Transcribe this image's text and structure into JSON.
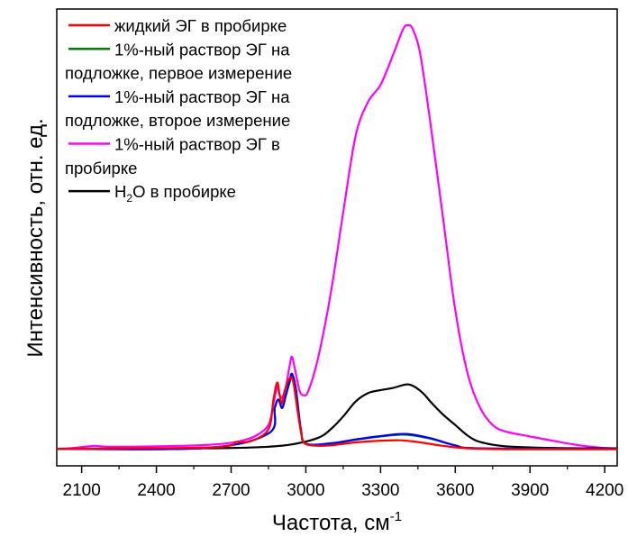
{
  "chart_data": {
    "type": "line",
    "xlabel": "Частота, см",
    "xlabel_sup": "-1",
    "ylabel": "Интенсивность, отн. ед.",
    "xlim": [
      2000,
      4250
    ],
    "ylim": [
      0,
      100
    ],
    "x_ticks": [
      2100,
      2400,
      2700,
      3000,
      3300,
      3600,
      3900,
      4200
    ],
    "x_tick_labels": [
      "2100",
      "2400",
      "2700",
      "3000",
      "3300",
      "3600",
      "3900",
      "4200"
    ],
    "y_ticks_shown": false,
    "legend_position": "top-left",
    "series": [
      {
        "name": "жидкий ЭГ в пробирке",
        "color": "#ff0000",
        "points": [
          [
            2000,
            0.4
          ],
          [
            2300,
            0.5
          ],
          [
            2600,
            0.7
          ],
          [
            2700,
            1.2
          ],
          [
            2720,
            2.0
          ],
          [
            2780,
            2.2
          ],
          [
            2850,
            5
          ],
          [
            2870,
            12
          ],
          [
            2885,
            16
          ],
          [
            2895,
            13
          ],
          [
            2905,
            11
          ],
          [
            2915,
            14
          ],
          [
            2935,
            17
          ],
          [
            2950,
            16
          ],
          [
            2970,
            8
          ],
          [
            2985,
            3
          ],
          [
            3000,
            1.5
          ],
          [
            3050,
            1.1
          ],
          [
            3100,
            1.2
          ],
          [
            3200,
            1.9
          ],
          [
            3300,
            2.3
          ],
          [
            3380,
            2.4
          ],
          [
            3450,
            2.0
          ],
          [
            3550,
            1.1
          ],
          [
            3650,
            0.5
          ],
          [
            3800,
            0.3
          ],
          [
            4000,
            0.3
          ],
          [
            4250,
            0.3
          ]
        ]
      },
      {
        "name": "1%-ный раствор ЭГ на подложке, первое измерение",
        "color": "#008000",
        "points": [
          [
            2000,
            0.4
          ],
          [
            2600,
            0.6
          ],
          [
            2850,
            4
          ],
          [
            2875,
            10
          ],
          [
            2890,
            12
          ],
          [
            2905,
            10
          ],
          [
            2920,
            13
          ],
          [
            2935,
            16
          ],
          [
            2945,
            17.5
          ],
          [
            2960,
            14
          ],
          [
            2980,
            5
          ],
          [
            3000,
            1.6
          ],
          [
            3100,
            1.6
          ],
          [
            3200,
            2.5
          ],
          [
            3300,
            3.3
          ],
          [
            3400,
            3.7
          ],
          [
            3500,
            2.8
          ],
          [
            3600,
            1.2
          ],
          [
            3700,
            0.5
          ],
          [
            4250,
            0.4
          ]
        ]
      },
      {
        "name": "1%-ный раствор ЭГ на подложке, второе измерение",
        "color": "#0000ff",
        "points": [
          [
            2000,
            0.4
          ],
          [
            2600,
            0.6
          ],
          [
            2850,
            4
          ],
          [
            2875,
            10
          ],
          [
            2890,
            12
          ],
          [
            2905,
            10
          ],
          [
            2920,
            13
          ],
          [
            2935,
            16.5
          ],
          [
            2945,
            18
          ],
          [
            2960,
            14.5
          ],
          [
            2980,
            5
          ],
          [
            3000,
            1.6
          ],
          [
            3100,
            1.7
          ],
          [
            3200,
            2.6
          ],
          [
            3300,
            3.4
          ],
          [
            3400,
            3.9
          ],
          [
            3500,
            2.9
          ],
          [
            3600,
            1.2
          ],
          [
            3700,
            0.5
          ],
          [
            4250,
            0.4
          ]
        ]
      },
      {
        "name": "1%-ный раствор ЭГ в пробирке",
        "color": "#ff00ff",
        "points": [
          [
            2000,
            0.4
          ],
          [
            2050,
            0.5
          ],
          [
            2100,
            0.8
          ],
          [
            2150,
            1.1
          ],
          [
            2200,
            0.9
          ],
          [
            2300,
            0.9
          ],
          [
            2400,
            1.0
          ],
          [
            2500,
            1.1
          ],
          [
            2600,
            1.3
          ],
          [
            2700,
            1.8
          ],
          [
            2750,
            2.4
          ],
          [
            2800,
            3.5
          ],
          [
            2850,
            6
          ],
          [
            2870,
            11
          ],
          [
            2885,
            15
          ],
          [
            2895,
            13
          ],
          [
            2905,
            12.5
          ],
          [
            2920,
            15
          ],
          [
            2935,
            20
          ],
          [
            2945,
            22
          ],
          [
            2960,
            18
          ],
          [
            2975,
            14
          ],
          [
            2990,
            13
          ],
          [
            3010,
            14
          ],
          [
            3050,
            22
          ],
          [
            3100,
            37
          ],
          [
            3150,
            56
          ],
          [
            3200,
            74
          ],
          [
            3250,
            82
          ],
          [
            3300,
            86
          ],
          [
            3350,
            93
          ],
          [
            3390,
            99
          ],
          [
            3410,
            100
          ],
          [
            3430,
            99
          ],
          [
            3460,
            93
          ],
          [
            3500,
            77
          ],
          [
            3550,
            55
          ],
          [
            3600,
            33
          ],
          [
            3650,
            18
          ],
          [
            3700,
            10
          ],
          [
            3750,
            6
          ],
          [
            3800,
            4.5
          ],
          [
            3900,
            3.3
          ],
          [
            4000,
            2.2
          ],
          [
            4100,
            1.2
          ],
          [
            4200,
            0.6
          ],
          [
            4250,
            0.5
          ]
        ]
      },
      {
        "name": "H2O в пробирке",
        "name_base": "H",
        "name_sub": "2",
        "name_rest": "O в пробирке",
        "color": "#000000",
        "points": [
          [
            2000,
            0.4
          ],
          [
            2500,
            0.5
          ],
          [
            2700,
            0.6
          ],
          [
            2850,
            0.9
          ],
          [
            2950,
            1.5
          ],
          [
            3050,
            3
          ],
          [
            3100,
            5
          ],
          [
            3150,
            8
          ],
          [
            3200,
            11.5
          ],
          [
            3250,
            13.5
          ],
          [
            3300,
            14.2
          ],
          [
            3350,
            14.7
          ],
          [
            3400,
            15.5
          ],
          [
            3430,
            15.2
          ],
          [
            3470,
            13.5
          ],
          [
            3500,
            11.5
          ],
          [
            3550,
            8.5
          ],
          [
            3600,
            6
          ],
          [
            3650,
            3.5
          ],
          [
            3700,
            2
          ],
          [
            3800,
            1.0
          ],
          [
            4000,
            0.6
          ],
          [
            4250,
            0.5
          ]
        ]
      }
    ]
  }
}
